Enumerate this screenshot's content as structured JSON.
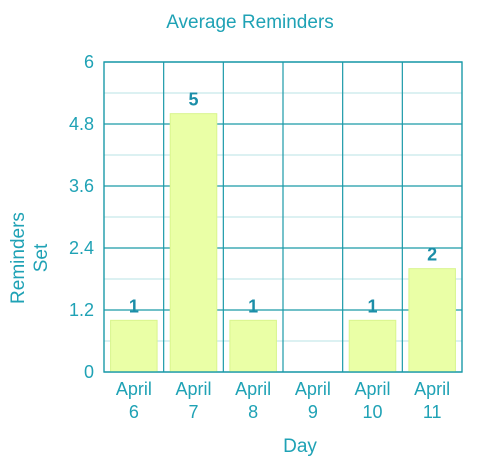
{
  "chart_data": {
    "type": "bar",
    "title": "Average Reminders",
    "xlabel": "Day",
    "ylabel": [
      "Reminders",
      "Set"
    ],
    "categories": [
      [
        "April",
        "6"
      ],
      [
        "April",
        "7"
      ],
      [
        "April",
        "8"
      ],
      [
        "April",
        "9"
      ],
      [
        "April",
        "10"
      ],
      [
        "April",
        "11"
      ]
    ],
    "values": [
      1,
      5,
      1,
      0,
      1,
      2
    ],
    "value_labels": [
      "1",
      "5",
      "1",
      "",
      "1",
      "2"
    ],
    "ylim": [
      0,
      6
    ],
    "yticks": [
      "0",
      "1.2",
      "2.4",
      "3.6",
      "4.8",
      "6"
    ],
    "ytick_values": [
      0,
      1.2,
      2.4,
      3.6,
      4.8,
      6
    ],
    "grid": true,
    "colors": {
      "bar": "#eaffa6",
      "text": "#1fa2b5",
      "grid": "#1b9aa8"
    }
  }
}
